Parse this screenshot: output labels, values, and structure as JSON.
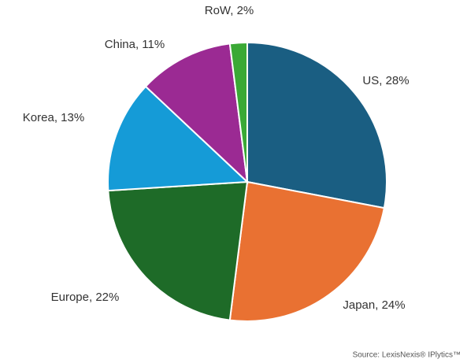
{
  "chart_data": {
    "type": "pie",
    "values": [
      28,
      24,
      22,
      13,
      11,
      2
    ],
    "value_labels": [
      "US, 28%",
      "Japan, 24%",
      "Europe, 22%",
      "Korea, 13%",
      "China, 11%",
      "RoW, 2%"
    ],
    "colors": [
      "#1a5e82",
      "#e97132",
      "#1e6b28",
      "#159bd7",
      "#9b2a93",
      "#3aa935"
    ],
    "source": "Source: LexisNexis® IPlytics™"
  }
}
